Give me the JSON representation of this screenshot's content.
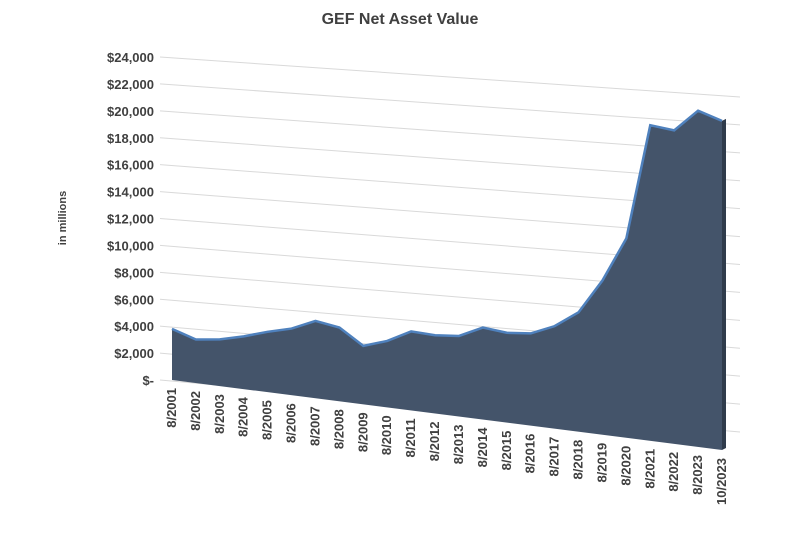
{
  "chart_data": {
    "type": "area",
    "title": "GEF Net Asset Value",
    "y_label": "in millions",
    "categories": [
      "8/2001",
      "8/2002",
      "8/2003",
      "8/2004",
      "8/2005",
      "8/2006",
      "8/2007",
      "8/2008",
      "8/2009",
      "8/2010",
      "8/2011",
      "8/2012",
      "8/2013",
      "8/2014",
      "8/2015",
      "8/2016",
      "8/2017",
      "8/2018",
      "8/2019",
      "8/2020",
      "8/2021",
      "8/2022",
      "8/2023",
      "10/2023"
    ],
    "values": [
      3800,
      3200,
      3400,
      3800,
      4300,
      4700,
      5400,
      5100,
      4000,
      4500,
      5300,
      5200,
      5300,
      6000,
      5800,
      5900,
      6500,
      7500,
      9600,
      12300,
      19300,
      19000,
      20200,
      19600
    ],
    "color": "#44546a",
    "line_color": "#4f81bd",
    "ylim": [
      0,
      24000
    ],
    "yticks": [
      {
        "value": 0,
        "label": "$-"
      },
      {
        "value": 2000,
        "label": "$2,000"
      },
      {
        "value": 4000,
        "label": "$4,000"
      },
      {
        "value": 6000,
        "label": "$6,000"
      },
      {
        "value": 8000,
        "label": "$8,000"
      },
      {
        "value": 10000,
        "label": "$10,000"
      },
      {
        "value": 12000,
        "label": "$12,000"
      },
      {
        "value": 14000,
        "label": "$14,000"
      },
      {
        "value": 16000,
        "label": "$16,000"
      },
      {
        "value": 18000,
        "label": "$18,000"
      },
      {
        "value": 20000,
        "label": "$20,000"
      },
      {
        "value": 22000,
        "label": "$22,000"
      },
      {
        "value": 24000,
        "label": "$24,000"
      }
    ],
    "grid": true
  }
}
